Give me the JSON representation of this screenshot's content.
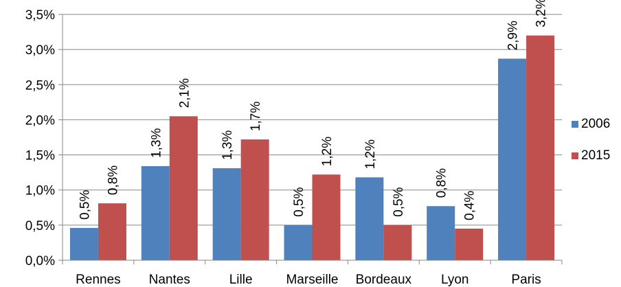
{
  "chart_data": {
    "type": "bar",
    "categories": [
      "Rennes",
      "Nantes",
      "Lille",
      "Marseille",
      "Bordeaux",
      "Lyon",
      "Paris"
    ],
    "series": [
      {
        "name": "2006",
        "color": "#4f81bd",
        "values": [
          0.46,
          1.34,
          1.31,
          0.5,
          1.18,
          0.77,
          2.87
        ],
        "labels": [
          "0,5%",
          "1,3%",
          "1,3%",
          "0,5%",
          "1,2%",
          "0,8%",
          "2,9%"
        ]
      },
      {
        "name": "2015",
        "color": "#c0504d",
        "values": [
          0.81,
          2.05,
          1.72,
          1.22,
          0.5,
          0.45,
          3.2
        ],
        "labels": [
          "0,8%",
          "2,1%",
          "1,7%",
          "1,2%",
          "0,5%",
          "0,4%",
          "3,2%"
        ]
      }
    ],
    "y_ticks": [
      "0,0%",
      "0,5%",
      "1,0%",
      "1,5%",
      "2,0%",
      "2,5%",
      "3,0%",
      "3,5%"
    ],
    "ylim": [
      0,
      3.5
    ],
    "grid": true,
    "legend_position": "right",
    "title": "",
    "xlabel": "",
    "ylabel": ""
  }
}
